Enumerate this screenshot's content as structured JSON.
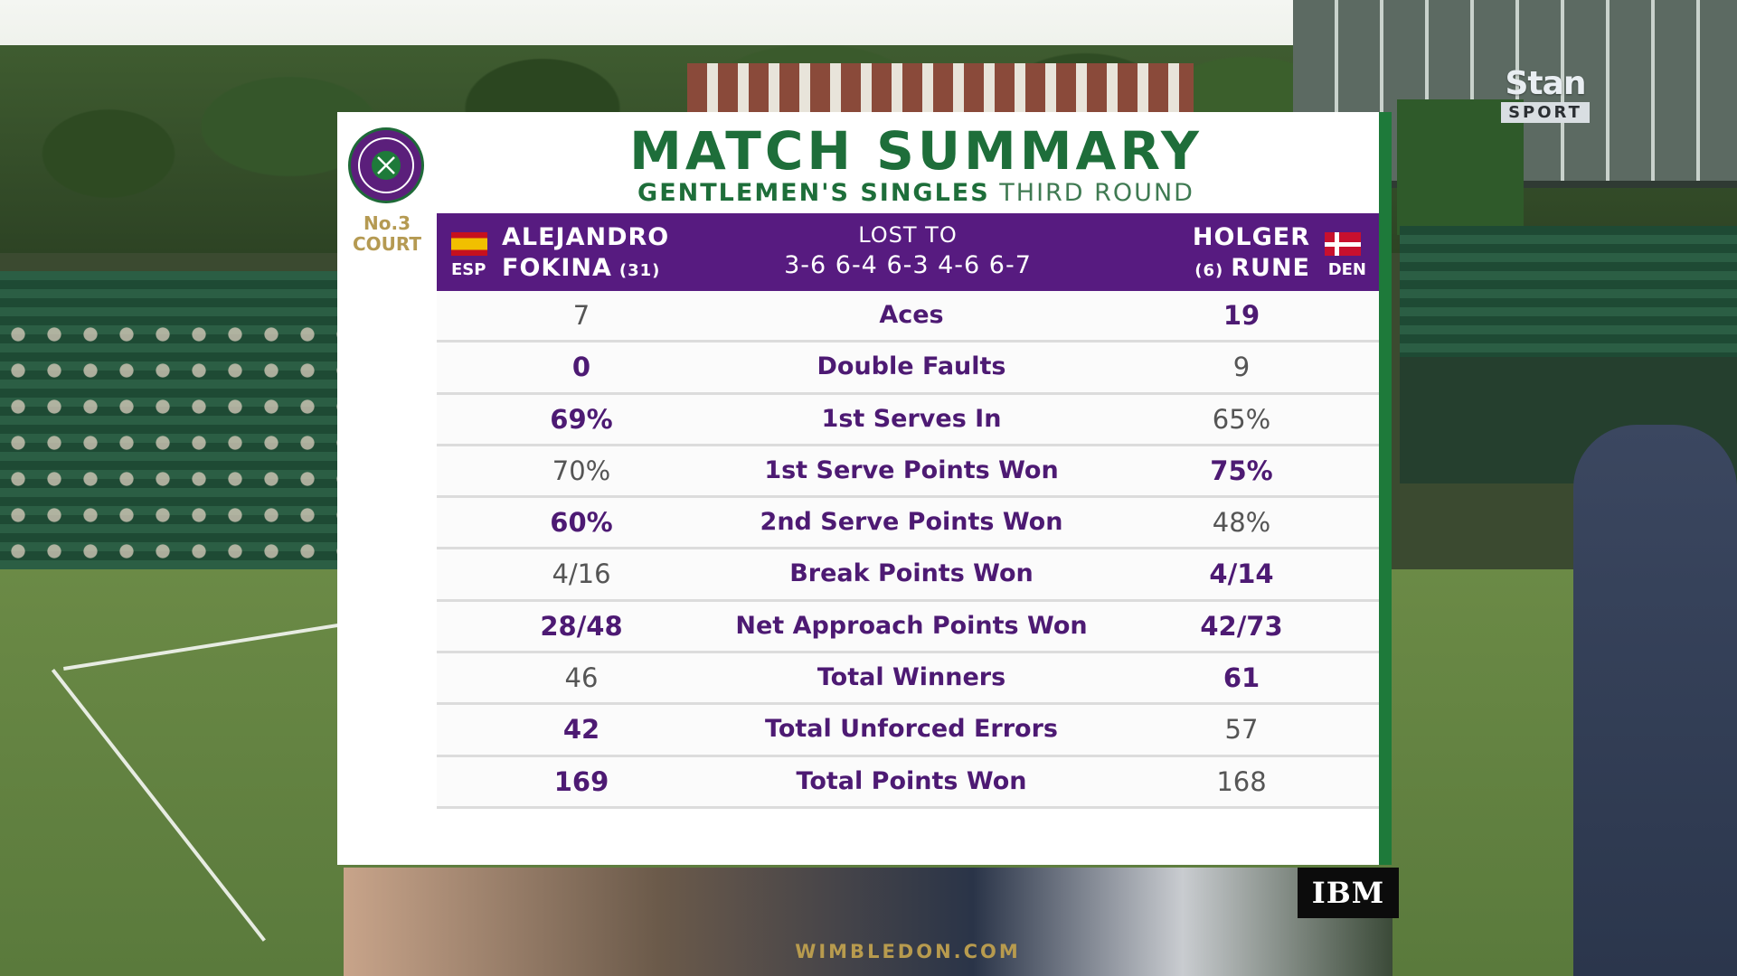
{
  "broadcaster": {
    "name": "Stan",
    "subbrand": "SPORT"
  },
  "sponsor": "IBM",
  "scoreboard": {
    "court": "No.3\nCOURT",
    "court_line1": "No.3",
    "court_line2": "COURT",
    "title": "MATCH SUMMARY",
    "event_bold": "GENTLEMEN'S SINGLES",
    "event_round": "THIRD ROUND",
    "colors": {
      "purple": "#571b80",
      "green": "#1e6e3a",
      "gold": "#b89b4e"
    },
    "player1": {
      "first": "ALEJANDRO",
      "last": "FOKINA",
      "seed": "(31)",
      "country": "ESP",
      "flag": "spain-flag"
    },
    "player2": {
      "first": "HOLGER",
      "last": "RUNE",
      "seed": "(6)",
      "country": "DEN",
      "flag": "denmark-flag"
    },
    "result": {
      "label": "LOST TO",
      "score": "3-6 6-4 6-3 4-6 6-7"
    },
    "stats": [
      {
        "label": "Aces",
        "p1": "7",
        "p2": "19",
        "p1_bold": false,
        "p2_bold": true
      },
      {
        "label": "Double Faults",
        "p1": "0",
        "p2": "9",
        "p1_bold": true,
        "p2_bold": false
      },
      {
        "label": "1st Serves In",
        "p1": "69%",
        "p2": "65%",
        "p1_bold": true,
        "p2_bold": false
      },
      {
        "label": "1st Serve Points Won",
        "p1": "70%",
        "p2": "75%",
        "p1_bold": false,
        "p2_bold": true
      },
      {
        "label": "2nd Serve Points Won",
        "p1": "60%",
        "p2": "48%",
        "p1_bold": true,
        "p2_bold": false
      },
      {
        "label": "Break Points Won",
        "p1": "4/16",
        "p2": "4/14",
        "p1_bold": false,
        "p2_bold": true
      },
      {
        "label": "Net Approach Points Won",
        "p1": "28/48",
        "p2": "42/73",
        "p1_bold": true,
        "p2_bold": true
      },
      {
        "label": "Total Winners",
        "p1": "46",
        "p2": "61",
        "p1_bold": false,
        "p2_bold": true
      },
      {
        "label": "Total Unforced Errors",
        "p1": "42",
        "p2": "57",
        "p1_bold": true,
        "p2_bold": false
      },
      {
        "label": "Total Points Won",
        "p1": "169",
        "p2": "168",
        "p1_bold": true,
        "p2_bold": false
      }
    ],
    "footer": "WIMBLEDON.COM"
  }
}
